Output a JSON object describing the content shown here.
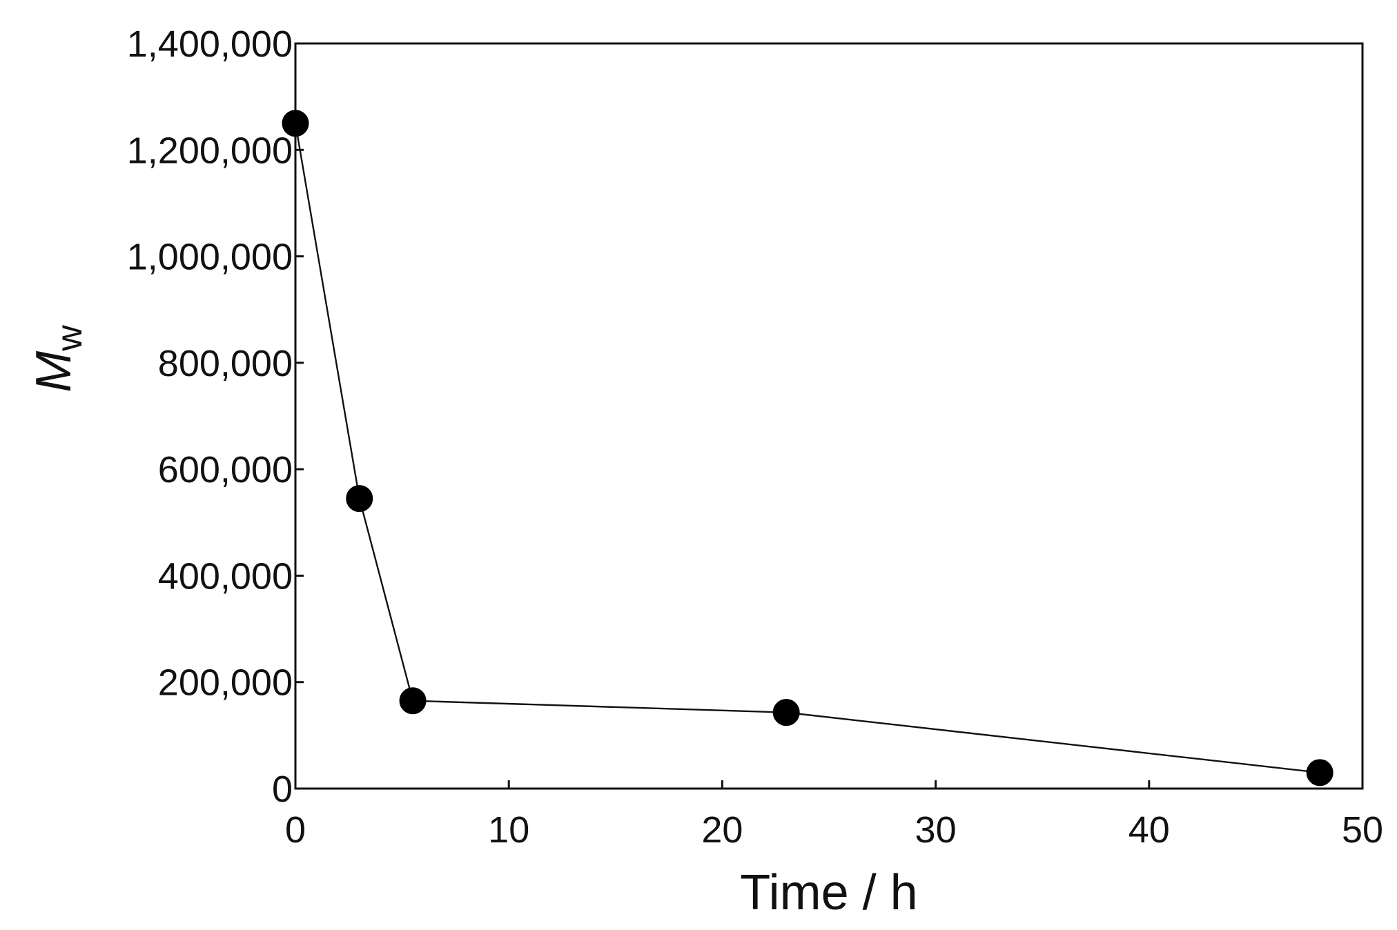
{
  "chart_data": {
    "type": "line",
    "xlabel": "Time / h",
    "ylabel": {
      "main": "M",
      "subscript": "w"
    },
    "xlim": [
      0,
      50
    ],
    "ylim": [
      0,
      1400000
    ],
    "x_ticks": [
      0,
      10,
      20,
      30,
      40,
      50
    ],
    "y_ticks": [
      0,
      200000,
      400000,
      600000,
      800000,
      1000000,
      1200000,
      1400000
    ],
    "x_tick_labels": [
      "0",
      "10",
      "20",
      "30",
      "40",
      "50"
    ],
    "y_tick_labels": [
      "0",
      "200,000",
      "400,000",
      "600,000",
      "800,000",
      "1,000,000",
      "1,200,000",
      "1,400,000"
    ],
    "grid": false,
    "marker": "circle",
    "colors": {
      "line": "#111111",
      "marker": "#000000",
      "axis": "#111111"
    },
    "series": [
      {
        "x": [
          0,
          3,
          5.5,
          23,
          48
        ],
        "y": [
          1250000,
          545000,
          165000,
          143000,
          30000
        ]
      }
    ]
  }
}
